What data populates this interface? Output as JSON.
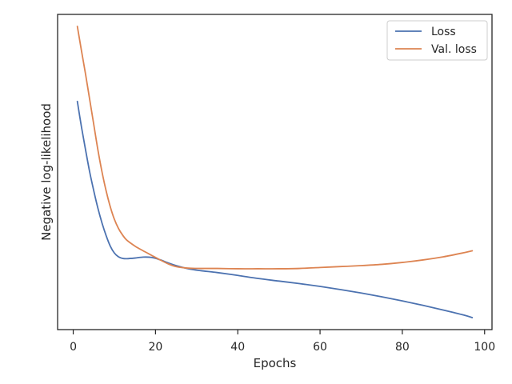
{
  "chart_data": {
    "type": "line",
    "title": "",
    "xlabel": "Epochs",
    "ylabel": "Negative log-likelihood",
    "xlim": [
      -3.8,
      101.8
    ],
    "ylim": [
      0.0,
      1.0
    ],
    "xticks": [
      0,
      20,
      40,
      60,
      80,
      100
    ],
    "yticks_visible": false,
    "grid": false,
    "legend_position": "top-right",
    "series": [
      {
        "name": "Loss",
        "color": "#4c72b0",
        "x": [
          1,
          2,
          3,
          4,
          5,
          6,
          7,
          8,
          9,
          10,
          11,
          12,
          13,
          15,
          17,
          19,
          21,
          23,
          25,
          28,
          31,
          35,
          40,
          45,
          50,
          55,
          60,
          65,
          70,
          75,
          80,
          85,
          90,
          95,
          97
        ],
        "y": [
          0.724,
          0.643,
          0.57,
          0.5,
          0.44,
          0.385,
          0.338,
          0.298,
          0.265,
          0.243,
          0.231,
          0.226,
          0.225,
          0.227,
          0.23,
          0.229,
          0.222,
          0.212,
          0.203,
          0.193,
          0.187,
          0.181,
          0.172,
          0.162,
          0.154,
          0.146,
          0.137,
          0.127,
          0.116,
          0.104,
          0.091,
          0.077,
          0.062,
          0.046,
          0.038
        ]
      },
      {
        "name": "Val. loss",
        "color": "#dd8452",
        "x": [
          1,
          2,
          3,
          4,
          5,
          6,
          7,
          8,
          9,
          10,
          11,
          12,
          13,
          15,
          17,
          19,
          21,
          23,
          25,
          28,
          31,
          35,
          40,
          45,
          50,
          55,
          60,
          65,
          70,
          75,
          80,
          85,
          90,
          95,
          97
        ],
        "y": [
          0.962,
          0.885,
          0.81,
          0.73,
          0.65,
          0.57,
          0.5,
          0.44,
          0.39,
          0.35,
          0.321,
          0.3,
          0.284,
          0.265,
          0.25,
          0.236,
          0.222,
          0.209,
          0.2,
          0.195,
          0.194,
          0.194,
          0.193,
          0.193,
          0.193,
          0.194,
          0.197,
          0.2,
          0.203,
          0.207,
          0.213,
          0.221,
          0.231,
          0.244,
          0.25
        ]
      }
    ]
  }
}
